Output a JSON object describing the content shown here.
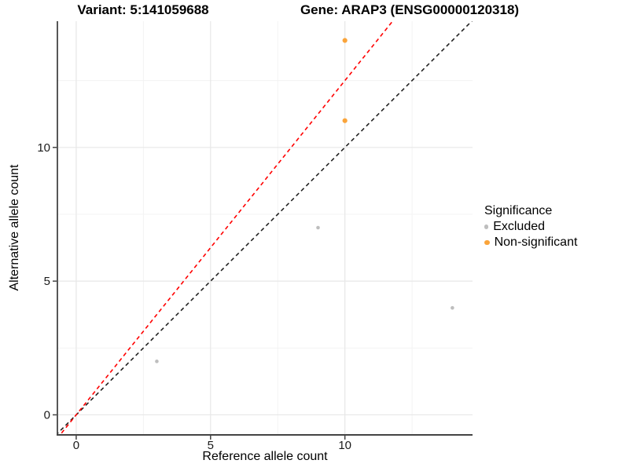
{
  "header": {
    "variant_title": "Variant: 5:141059688",
    "gene_title": "Gene: ARAP3 (ENSG00000120318)"
  },
  "axes": {
    "x": {
      "label": "Reference allele count",
      "ticks": [
        0,
        5,
        10
      ],
      "minor_ticks": [
        2.5,
        7.5,
        12.5
      ]
    },
    "y": {
      "label": "Alternative allele count",
      "ticks": [
        0,
        5,
        10
      ],
      "minor_ticks": [
        2.5,
        7.5,
        12.5
      ]
    }
  },
  "legend": {
    "title": "Significance",
    "items": [
      {
        "label": "Excluded",
        "color": "#BEBEBE",
        "dot_radius": 2.6
      },
      {
        "label": "Non-significant",
        "color": "#FAA43A",
        "dot_radius": 3.3
      }
    ]
  },
  "chart_data": {
    "type": "scatter",
    "title_left": "Variant: 5:141059688",
    "title_right": "Gene: ARAP3 (ENSG00000120318)",
    "xlabel": "Reference allele count",
    "ylabel": "Alternative allele count",
    "xlim": [
      -0.7,
      14.75
    ],
    "ylim": [
      -0.75,
      14.72
    ],
    "grid": true,
    "legend_position": "right",
    "series": [
      {
        "name": "Excluded",
        "color": "#BEBEBE",
        "radius": 2.3,
        "points": [
          [
            3,
            2
          ],
          [
            9,
            7
          ],
          [
            14,
            4
          ]
        ]
      },
      {
        "name": "Non-significant",
        "color": "#FAA43A",
        "radius": 3.1,
        "points": [
          [
            10,
            14
          ],
          [
            10,
            11
          ]
        ]
      }
    ],
    "lines": [
      {
        "name": "identity-line",
        "slope": 1,
        "intercept": 0,
        "color": "#222222",
        "style": "dashed"
      },
      {
        "name": "fit-line",
        "slope": 1.25,
        "intercept": 0,
        "color": "#FF0000",
        "style": "dashed"
      }
    ]
  },
  "style": {
    "grid_major_color": "#E7E7E7",
    "grid_minor_color": "#F2F2F2",
    "axis_line_color": "#444444",
    "tick_label_color": "#1a1a1a",
    "background": "#ffffff"
  }
}
